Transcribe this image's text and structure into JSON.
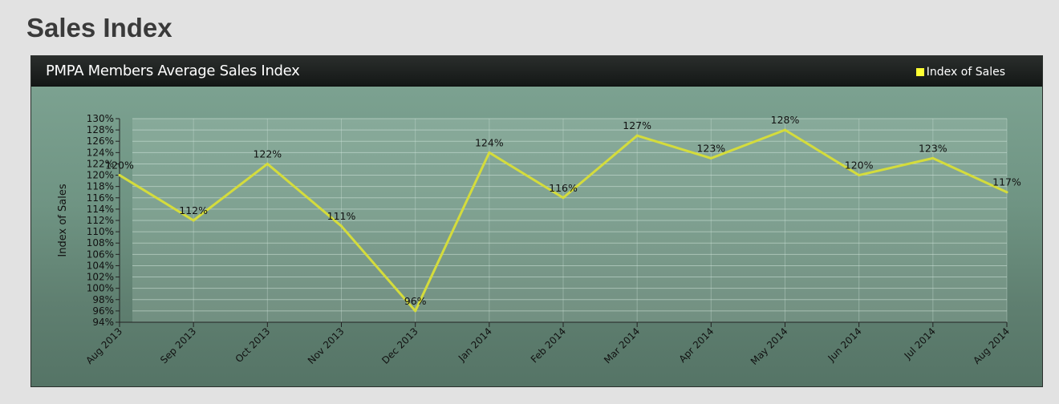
{
  "page": {
    "heading": "Sales Index"
  },
  "panel": {
    "title": "PMPA Members Average Sales Index"
  },
  "chart_data": {
    "type": "line",
    "title": "PMPA Members Average Sales Index",
    "xlabel": "",
    "ylabel": "Index of Sales",
    "ylim": [
      94,
      130
    ],
    "ytick_step": 2,
    "ytick_suffix": "%",
    "grid": true,
    "legend_placement": "top-right",
    "categories": [
      "Aug 2013",
      "Sep 2013",
      "Oct 2013",
      "Nov 2013",
      "Dec 2013",
      "Jan 2014",
      "Feb 2014",
      "Mar 2014",
      "Apr 2014",
      "May 2014",
      "Jun 2014",
      "Jul 2014",
      "Aug 2014"
    ],
    "series": [
      {
        "name": "Index of Sales",
        "color": "#d4dc3c",
        "values": [
          120,
          112,
          122,
          111,
          96,
          124,
          116,
          127,
          123,
          128,
          120,
          123,
          117
        ],
        "labels": [
          "120%",
          "112%",
          "122%",
          "111%",
          "96%",
          "124%",
          "116%",
          "127%",
          "123%",
          "128%",
          "120%",
          "123%",
          "117%"
        ]
      }
    ]
  }
}
